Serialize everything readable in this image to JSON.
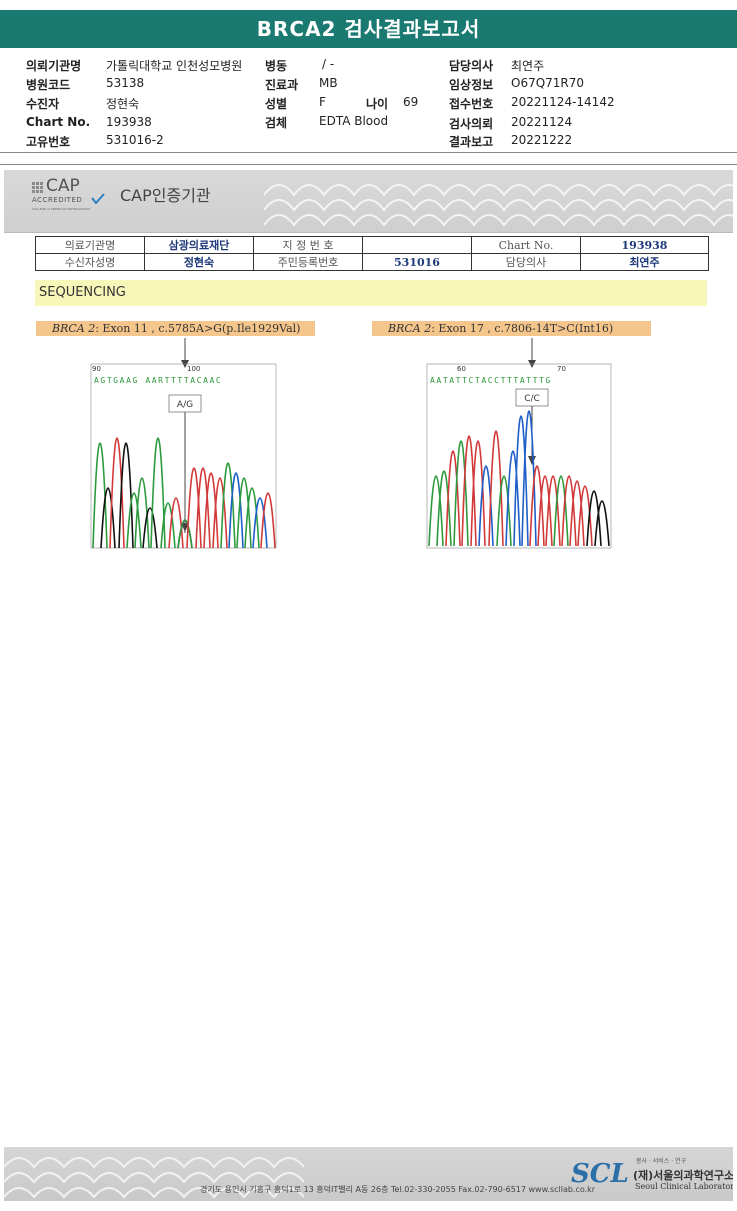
{
  "title": "BRCA2 검사결과보고서",
  "info": {
    "col1": [
      {
        "label": "의뢰기관명",
        "value": "가톨릭대학교 인천성모병원"
      },
      {
        "label": "병원코드",
        "value": "53138"
      },
      {
        "label": "수진자",
        "value": "정현숙"
      },
      {
        "label": "Chart No.",
        "value": "193938"
      },
      {
        "label": "고유번호",
        "value": "531016-2"
      }
    ],
    "col2": [
      {
        "label": "병동",
        "value": "/ -"
      },
      {
        "label": "진료과",
        "value": "MB"
      },
      {
        "label": "성별",
        "value": "F"
      },
      {
        "label": "검체",
        "value": "EDTA Blood"
      }
    ],
    "age": {
      "label": "나이",
      "value": "69"
    },
    "col3": [
      {
        "label": "담당의사",
        "value": "최연주"
      },
      {
        "label": "임상정보",
        "value": "O67Q71R70"
      },
      {
        "label": "접수번호",
        "value": "20221124-14142"
      },
      {
        "label": "검사의뢰",
        "value": "20221124"
      },
      {
        "label": "결과보고",
        "value": "20221222"
      }
    ]
  },
  "cap": {
    "logo_text": "CAP",
    "accredited": "ACCREDITED",
    "sub": "COLLEGE of AMERICAN PATHOLOGISTS",
    "label": "CAP인증기관"
  },
  "patient_table": {
    "row1": [
      "의료기관명",
      "삼광의료재단",
      "지 정 번 호",
      "",
      "Chart No.",
      "193938"
    ],
    "row2": [
      "수신자성명",
      "정현숙",
      "주민등록번호",
      "531016",
      "담당의사",
      "최연주"
    ]
  },
  "section": "SEQUENCING",
  "variants": [
    {
      "gene": "BRCA 2",
      "desc": ": Exon 11 , c.5785A>G(p.Ile1929Val)",
      "pos_start": "90",
      "pos_mid": "100",
      "seq": "AGTGAAG AARTTTTACAAC",
      "call": "A/G"
    },
    {
      "gene": "BRCA 2",
      "desc": ": Exon 17 , c.7806-14T>C(Int16)",
      "pos_start": "60",
      "pos_mid": "70",
      "seq": "AATATTCTACCTTTATTTG",
      "call": "C/C"
    }
  ],
  "colors": {
    "A": "#2e9a3e",
    "G": "#111111",
    "T": "#d23a3a",
    "C": "#1f5fc8",
    "header": "#1a7a72"
  },
  "footer": {
    "address": "경기도 용인시 기흥구 흥덕1로 13 흥덕IT밸리 A동 26층  Tel.02-330-2055  Fax.02-790-6517  www.scllab.co.kr",
    "logo": "SCL",
    "tagline": "봉사 · 서비스 · 연구",
    "name_kr": "(재)서울의과학연구소",
    "name_en": "Seoul Clinical Laboratories"
  }
}
